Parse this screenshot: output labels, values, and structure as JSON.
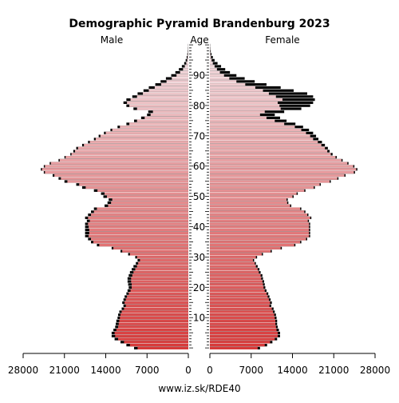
{
  "chart_data": {
    "type": "bar",
    "title": "Demographic Pyramid Brandenburg 2023",
    "left_label": "Male",
    "center_label": "Age",
    "right_label": "Female",
    "source": "www.iz.sk/RDE40",
    "x_max": 28000,
    "x_ticks_male": [
      "28000",
      "21000",
      "14000",
      "7000",
      "0"
    ],
    "x_ticks_female": [
      "0",
      "7000",
      "14000",
      "21000",
      "28000"
    ],
    "x_tick_values": [
      28000,
      21000,
      14000,
      7000,
      0
    ],
    "age_ticks": [
      10,
      20,
      30,
      40,
      50,
      60,
      70,
      80,
      90
    ],
    "ages": [
      0,
      1,
      2,
      3,
      4,
      5,
      6,
      7,
      8,
      9,
      10,
      11,
      12,
      13,
      14,
      15,
      16,
      17,
      18,
      19,
      20,
      21,
      22,
      23,
      24,
      25,
      26,
      27,
      28,
      29,
      30,
      31,
      32,
      33,
      34,
      35,
      36,
      37,
      38,
      39,
      40,
      41,
      42,
      43,
      44,
      45,
      46,
      47,
      48,
      49,
      50,
      51,
      52,
      53,
      54,
      55,
      56,
      57,
      58,
      59,
      60,
      61,
      62,
      63,
      64,
      65,
      66,
      67,
      68,
      69,
      70,
      71,
      72,
      73,
      74,
      75,
      76,
      77,
      78,
      79,
      80,
      81,
      82,
      83,
      84,
      85,
      86,
      87,
      88,
      89,
      90,
      91,
      92,
      93,
      94,
      95,
      96,
      97,
      98,
      99,
      100
    ],
    "series": [
      {
        "name": "Male",
        "color": "#000000",
        "values": [
          9200,
          10500,
          11500,
          12500,
          13000,
          13000,
          12700,
          12400,
          12300,
          12200,
          12000,
          11900,
          11700,
          11300,
          11000,
          11200,
          11000,
          10800,
          10500,
          10300,
          10100,
          10200,
          10300,
          10300,
          10100,
          9900,
          9600,
          9300,
          8900,
          8600,
          9000,
          10200,
          11500,
          13000,
          15500,
          16500,
          17000,
          17500,
          17500,
          17500,
          17500,
          17500,
          17200,
          17500,
          17000,
          16500,
          16000,
          14200,
          13700,
          13500,
          14400,
          14800,
          16000,
          18000,
          19000,
          21000,
          22000,
          23000,
          24500,
          25000,
          24500,
          23500,
          22000,
          21000,
          20000,
          19500,
          19000,
          18000,
          17000,
          16000,
          15200,
          14300,
          13200,
          12000,
          10500,
          9200,
          8000,
          7000,
          6800,
          9300,
          10500,
          11000,
          10500,
          9500,
          8600,
          7600,
          6700,
          5600,
          4700,
          3800,
          2900,
          2200,
          1600,
          1100,
          700,
          450,
          280,
          170,
          100,
          60,
          30
        ]
      },
      {
        "name": "Female",
        "color": "#000000",
        "values": [
          8500,
          9700,
          10600,
          11400,
          11900,
          11900,
          11700,
          11500,
          11400,
          11400,
          11300,
          11200,
          11000,
          10800,
          10400,
          10500,
          10300,
          10100,
          9900,
          9600,
          9400,
          9300,
          9200,
          9000,
          8900,
          8600,
          8400,
          8100,
          7800,
          7500,
          8000,
          9000,
          10500,
          12200,
          14500,
          15500,
          16500,
          17000,
          17000,
          17000,
          17000,
          17000,
          16800,
          17200,
          16700,
          16200,
          15500,
          13800,
          13300,
          13200,
          14200,
          14900,
          16200,
          17800,
          18800,
          20500,
          21800,
          23000,
          24600,
          25000,
          24500,
          23500,
          22500,
          21500,
          20800,
          20300,
          20000,
          19500,
          19000,
          18400,
          18000,
          17500,
          16800,
          15800,
          14500,
          13000,
          11900,
          11000,
          12600,
          15500,
          17000,
          17500,
          17800,
          17500,
          16500,
          14200,
          12000,
          9600,
          7600,
          5900,
          4500,
          3400,
          2600,
          1900,
          1300,
          800,
          500,
          280,
          150,
          70,
          35
        ]
      },
      {
        "name": "Male (inner)",
        "color": "#e8909a",
        "values": [
          8600,
          9900,
          10900,
          11900,
          12400,
          12500,
          12200,
          11900,
          11800,
          11700,
          11600,
          11500,
          11300,
          10900,
          10600,
          10800,
          10600,
          10400,
          10100,
          9800,
          9600,
          9600,
          9700,
          9700,
          9500,
          9300,
          9000,
          8700,
          8500,
          8200,
          8700,
          9900,
          11200,
          12700,
          15100,
          16100,
          16500,
          16900,
          16800,
          16800,
          16900,
          17000,
          16700,
          17000,
          16500,
          16000,
          15500,
          13600,
          13100,
          12900,
          13800,
          14200,
          15400,
          17400,
          18500,
          20500,
          21600,
          22700,
          24300,
          24800,
          24300,
          23300,
          21800,
          20800,
          19800,
          19200,
          18700,
          17700,
          16700,
          15700,
          14900,
          14000,
          12900,
          11600,
          10000,
          8700,
          7400,
          6400,
          6000,
          8700,
          10000,
          10400,
          9800,
          8700,
          7700,
          6700,
          5700,
          4600,
          3700,
          2800,
          2000,
          1400,
          900,
          600,
          350,
          200,
          120,
          70,
          40,
          20,
          10
        ]
      },
      {
        "name": "Female (inner)",
        "color": "#e8909a",
        "values": [
          8100,
          9300,
          10200,
          11000,
          11500,
          11500,
          11300,
          11200,
          11100,
          11100,
          11000,
          10900,
          10700,
          10500,
          10100,
          10200,
          10000,
          9800,
          9600,
          9300,
          9100,
          9000,
          8900,
          8700,
          8600,
          8300,
          8100,
          7800,
          7600,
          7300,
          7800,
          8800,
          10300,
          12000,
          14300,
          15300,
          16300,
          16800,
          16800,
          16800,
          16800,
          16800,
          16600,
          17000,
          16500,
          16000,
          15300,
          13600,
          13100,
          13000,
          14000,
          14700,
          16000,
          17600,
          18600,
          20300,
          21600,
          22800,
          24400,
          24800,
          24300,
          23300,
          22300,
          21300,
          20500,
          19900,
          19500,
          18900,
          18300,
          17500,
          17000,
          16300,
          15500,
          14400,
          12600,
          11000,
          9600,
          8500,
          9300,
          12000,
          11800,
          11500,
          12300,
          11200,
          10000,
          9000,
          7700,
          6000,
          4500,
          3300,
          2400,
          1700,
          1200,
          800,
          500,
          300,
          180,
          100,
          50,
          25,
          10
        ]
      }
    ],
    "grid": false
  }
}
